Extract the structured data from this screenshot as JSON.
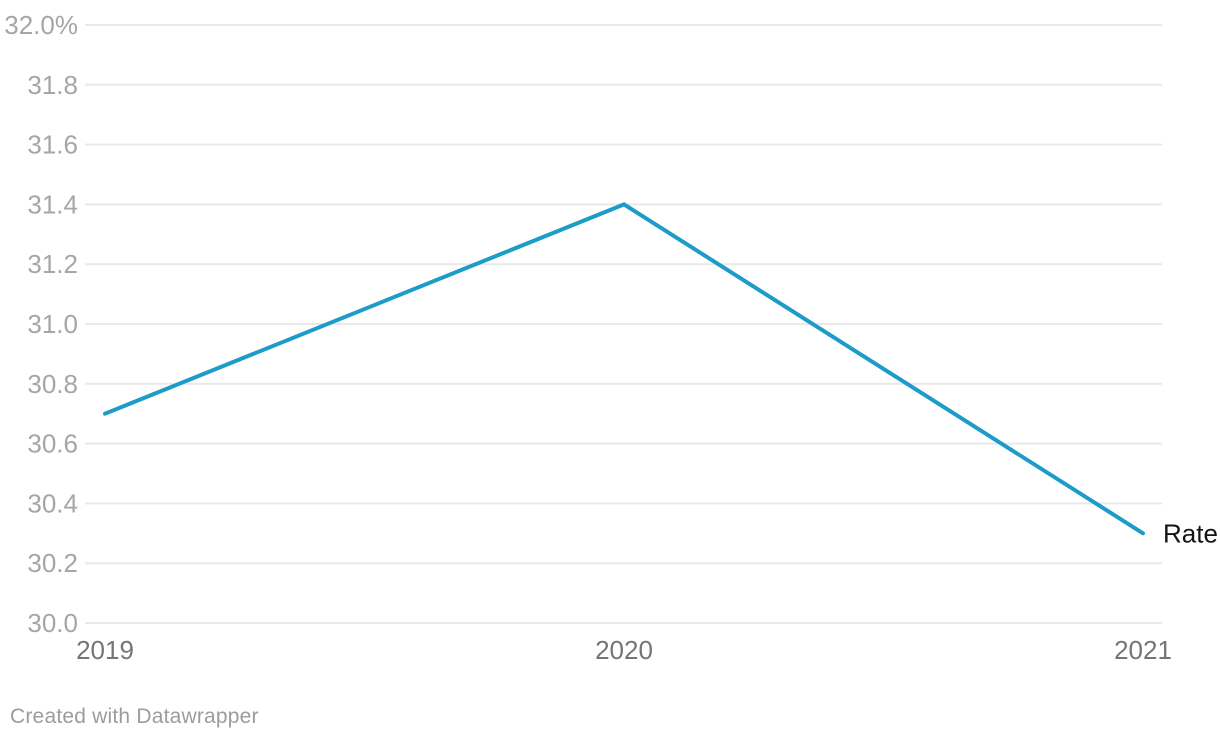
{
  "chart_data": {
    "type": "line",
    "x": [
      "2019",
      "2020",
      "2021"
    ],
    "series": [
      {
        "name": "Rate",
        "values": [
          30.7,
          31.4,
          30.3
        ]
      }
    ],
    "title": "",
    "xlabel": "",
    "ylabel": "",
    "ylim": [
      30.0,
      32.0
    ],
    "ytick_step": 0.2,
    "ytick_labels": [
      "30.0",
      "30.2",
      "30.4",
      "30.6",
      "30.8",
      "31.0",
      "31.2",
      "31.4",
      "31.6",
      "31.8",
      "32.0%"
    ],
    "grid": "horizontal",
    "legend_position": "line-end"
  },
  "colors": {
    "background": "#ffffff",
    "line": "#1d9bc9",
    "grid": "#e9e9e9",
    "y_tick_label": "#a6a6a6",
    "x_tick_label": "#757575",
    "series_label": "#141414",
    "footer": "#9c9c9c"
  },
  "footer": {
    "credit": "Created with Datawrapper"
  }
}
